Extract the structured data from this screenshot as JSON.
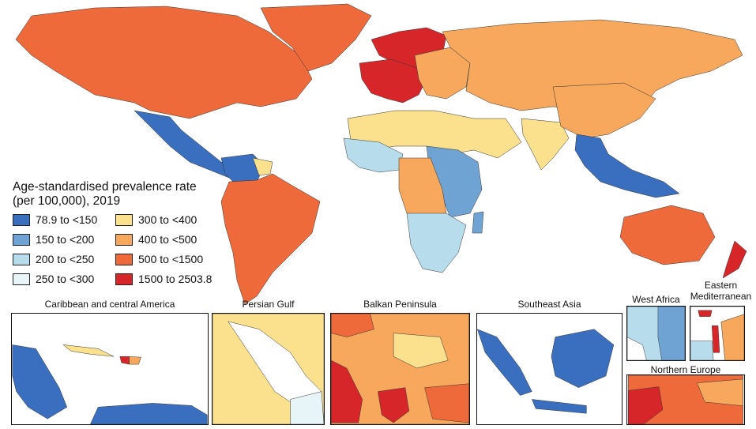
{
  "legend": {
    "title_line1": "Age-standardised prevalence rate",
    "title_line2": "(per 100,000), 2019",
    "items": [
      {
        "label": "78.9 to <150",
        "color": "#3a6fbf"
      },
      {
        "label": "300 to <400",
        "color": "#fbe08e"
      },
      {
        "label": "150 to <200",
        "color": "#6fa3d4"
      },
      {
        "label": "400 to <500",
        "color": "#f7a85c"
      },
      {
        "label": "200 to <250",
        "color": "#b7dceb"
      },
      {
        "label": "500 to <1500",
        "color": "#ef6a3a"
      },
      {
        "label": "250 to <300",
        "color": "#e7f4f8"
      },
      {
        "label": "1500 to 2503.8",
        "color": "#d7262a"
      }
    ]
  },
  "insets": {
    "caribbean": "Caribbean and central America",
    "persian_gulf": "Persian Gulf",
    "balkan": "Balkan Peninsula",
    "southeast_asia": "Southeast Asia",
    "west_africa": "West Africa",
    "eastern_med_line1": "Eastern",
    "eastern_med_line2": "Mediterranean",
    "northern_europe": "Northern Europe"
  },
  "colors": {
    "c1": "#3a6fbf",
    "c2": "#6fa3d4",
    "c3": "#b7dceb",
    "c4": "#e7f4f8",
    "c5": "#fbe08e",
    "c6": "#f7a85c",
    "c7": "#ef6a3a",
    "c8": "#d7262a"
  }
}
